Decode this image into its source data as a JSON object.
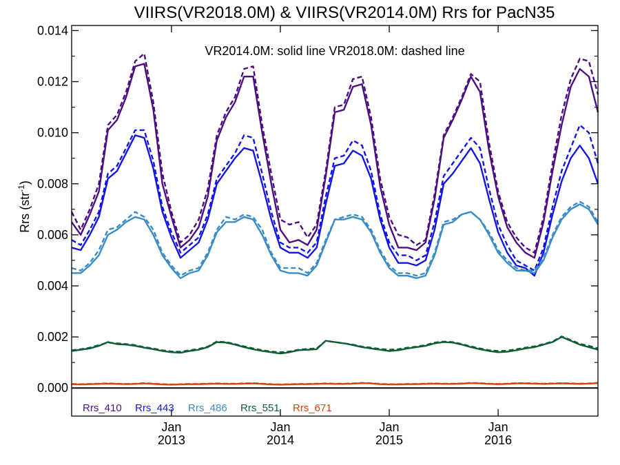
{
  "chart_data": {
    "type": "line",
    "title": "VIIRS(VR2018.0M) & VIIRS(VR2014.0M)  Rrs for PacN35",
    "note": "VR2014.0M: solid line   VR2018.0M: dashed line",
    "ylabel_main": "Rrs (str",
    "ylabel_sup": "-1",
    "ylabel_close": ")",
    "xlim": [
      0,
      58
    ],
    "ylim": [
      -0.0011,
      0.0142
    ],
    "yticks": [
      0.0,
      0.002,
      0.004,
      0.006,
      0.008,
      0.01,
      0.012,
      0.014
    ],
    "ytick_labels": [
      "0.000",
      "0.002",
      "0.004",
      "0.006",
      "0.008",
      "0.010",
      "0.012",
      "0.014"
    ],
    "xticks": [
      {
        "x": 11,
        "month": "Jan",
        "year": "2013"
      },
      {
        "x": 23,
        "month": "Jan",
        "year": "2014"
      },
      {
        "x": 35,
        "month": "Jan",
        "year": "2015"
      },
      {
        "x": 47,
        "month": "Jan",
        "year": "2016"
      }
    ],
    "x": [
      0,
      1,
      2,
      3,
      4,
      5,
      6,
      7,
      8,
      9,
      10,
      11,
      12,
      13,
      14,
      15,
      16,
      17,
      18,
      19,
      20,
      21,
      22,
      23,
      24,
      25,
      26,
      27,
      28,
      29,
      30,
      31,
      32,
      33,
      34,
      35,
      36,
      37,
      38,
      39,
      40,
      41,
      42,
      43,
      44,
      45,
      46,
      47,
      48,
      49,
      50,
      51,
      52,
      53,
      54,
      55,
      56,
      57,
      58
    ],
    "series": [
      {
        "name": "Rrs_410",
        "version": "VR2014.0M",
        "style": "solid",
        "color": "#4B0F82",
        "values": [
          0.0065,
          0.006,
          0.0068,
          0.0077,
          0.0101,
          0.0105,
          0.0114,
          0.0126,
          0.0127,
          0.0109,
          0.008,
          0.0067,
          0.0055,
          0.0058,
          0.0063,
          0.0075,
          0.0097,
          0.0106,
          0.0112,
          0.0122,
          0.0122,
          0.01,
          0.008,
          0.0062,
          0.0057,
          0.0058,
          0.0056,
          0.0062,
          0.0083,
          0.0108,
          0.0109,
          0.0118,
          0.0119,
          0.0103,
          0.0079,
          0.0064,
          0.0055,
          0.0055,
          0.0054,
          0.0057,
          0.0074,
          0.0098,
          0.0105,
          0.0113,
          0.0122,
          0.0116,
          0.0093,
          0.0075,
          0.0063,
          0.0057,
          0.0053,
          0.0051,
          0.0065,
          0.0085,
          0.0103,
          0.0118,
          0.0125,
          0.0122,
          0.0108
        ]
      },
      {
        "name": "Rrs_410",
        "version": "VR2018.0M",
        "style": "dashed",
        "color": "#4B0F82",
        "values": [
          0.0069,
          0.0062,
          0.007,
          0.008,
          0.0103,
          0.0107,
          0.0116,
          0.0128,
          0.0131,
          0.0112,
          0.0084,
          0.0069,
          0.0057,
          0.006,
          0.0066,
          0.0078,
          0.0099,
          0.0108,
          0.0114,
          0.0125,
          0.0126,
          0.0103,
          0.0084,
          0.0066,
          0.0064,
          0.0065,
          0.0059,
          0.0064,
          0.0085,
          0.011,
          0.0111,
          0.0121,
          0.0122,
          0.0106,
          0.0082,
          0.0067,
          0.006,
          0.0059,
          0.0056,
          0.0058,
          0.0076,
          0.0099,
          0.0106,
          0.0114,
          0.0123,
          0.012,
          0.0096,
          0.0077,
          0.0065,
          0.0059,
          0.0055,
          0.0053,
          0.0067,
          0.0088,
          0.0107,
          0.0121,
          0.0129,
          0.0128,
          0.0115
        ]
      },
      {
        "name": "Rrs_443",
        "version": "VR2014.0M",
        "style": "solid",
        "color": "#1414E6",
        "values": [
          0.0055,
          0.0054,
          0.006,
          0.0067,
          0.0082,
          0.0085,
          0.0092,
          0.0099,
          0.0098,
          0.0086,
          0.0069,
          0.0059,
          0.0051,
          0.0054,
          0.0057,
          0.0066,
          0.008,
          0.0085,
          0.009,
          0.0094,
          0.0093,
          0.008,
          0.0066,
          0.0055,
          0.0053,
          0.0053,
          0.0051,
          0.0055,
          0.0072,
          0.0087,
          0.0088,
          0.0093,
          0.0091,
          0.0082,
          0.0066,
          0.0055,
          0.0049,
          0.0049,
          0.0048,
          0.005,
          0.0062,
          0.008,
          0.0084,
          0.0089,
          0.0094,
          0.0088,
          0.0074,
          0.0061,
          0.0053,
          0.0048,
          0.0047,
          0.0044,
          0.0053,
          0.0068,
          0.0081,
          0.009,
          0.0095,
          0.009,
          0.008
        ]
      },
      {
        "name": "Rrs_443",
        "version": "VR2018.0M",
        "style": "dashed",
        "color": "#1414E6",
        "values": [
          0.0058,
          0.0056,
          0.0062,
          0.0069,
          0.0084,
          0.0087,
          0.0094,
          0.0101,
          0.0101,
          0.0089,
          0.0071,
          0.0061,
          0.0053,
          0.0056,
          0.0059,
          0.0068,
          0.0082,
          0.0087,
          0.0092,
          0.0099,
          0.0098,
          0.0084,
          0.0069,
          0.0057,
          0.0055,
          0.0055,
          0.0053,
          0.0057,
          0.0075,
          0.009,
          0.0091,
          0.0097,
          0.0095,
          0.0085,
          0.0068,
          0.0057,
          0.0052,
          0.0052,
          0.005,
          0.0052,
          0.0065,
          0.0083,
          0.0088,
          0.0093,
          0.0098,
          0.0094,
          0.0078,
          0.0064,
          0.0056,
          0.005,
          0.0048,
          0.0046,
          0.0055,
          0.0071,
          0.0085,
          0.0094,
          0.0103,
          0.01,
          0.0088
        ]
      },
      {
        "name": "Rrs_486",
        "version": "VR2014.0M",
        "style": "solid",
        "color": "#3A8CC6",
        "values": [
          0.0045,
          0.0045,
          0.0048,
          0.0052,
          0.006,
          0.0062,
          0.0065,
          0.0067,
          0.0066,
          0.006,
          0.0052,
          0.0047,
          0.0043,
          0.0045,
          0.0046,
          0.0052,
          0.0061,
          0.0065,
          0.0065,
          0.0067,
          0.0066,
          0.006,
          0.0052,
          0.0046,
          0.0045,
          0.0045,
          0.0044,
          0.0048,
          0.0057,
          0.0066,
          0.0066,
          0.0067,
          0.0066,
          0.0061,
          0.0053,
          0.0047,
          0.0044,
          0.0044,
          0.0043,
          0.0044,
          0.0052,
          0.0064,
          0.0065,
          0.0068,
          0.0069,
          0.0066,
          0.006,
          0.0053,
          0.0049,
          0.0046,
          0.0046,
          0.0045,
          0.005,
          0.0059,
          0.0066,
          0.007,
          0.0072,
          0.007,
          0.0064
        ]
      },
      {
        "name": "Rrs_486",
        "version": "VR2018.0M",
        "style": "dashed",
        "color": "#3A8CC6",
        "values": [
          0.0047,
          0.0046,
          0.0049,
          0.0054,
          0.0062,
          0.0063,
          0.0066,
          0.0069,
          0.0067,
          0.0062,
          0.0053,
          0.0048,
          0.0044,
          0.0046,
          0.0047,
          0.0053,
          0.0062,
          0.0067,
          0.0066,
          0.0068,
          0.0067,
          0.0062,
          0.0053,
          0.0047,
          0.0047,
          0.0047,
          0.0045,
          0.0049,
          0.0058,
          0.0066,
          0.0067,
          0.0068,
          0.0067,
          0.0062,
          0.0054,
          0.0048,
          0.0045,
          0.0045,
          0.0044,
          0.0045,
          0.0053,
          0.0065,
          0.0066,
          0.0068,
          0.0069,
          0.0066,
          0.0061,
          0.0054,
          0.005,
          0.0047,
          0.0046,
          0.0046,
          0.0051,
          0.006,
          0.0067,
          0.0071,
          0.0073,
          0.0071,
          0.0065
        ]
      },
      {
        "name": "Rrs_551",
        "version": "VR2014.0M",
        "style": "solid",
        "color": "#0D5E32",
        "values": [
          0.00145,
          0.0015,
          0.00155,
          0.00165,
          0.0018,
          0.00172,
          0.0017,
          0.00165,
          0.00158,
          0.00152,
          0.00145,
          0.0014,
          0.00138,
          0.00145,
          0.0015,
          0.0016,
          0.0018,
          0.00178,
          0.0017,
          0.0016,
          0.00152,
          0.00145,
          0.0014,
          0.00135,
          0.0014,
          0.00148,
          0.0015,
          0.00152,
          0.00185,
          0.0018,
          0.00175,
          0.00168,
          0.0016,
          0.00155,
          0.0015,
          0.00145,
          0.00148,
          0.00155,
          0.0016,
          0.00165,
          0.00175,
          0.0018,
          0.00178,
          0.0017,
          0.0016,
          0.00152,
          0.00145,
          0.0014,
          0.00142,
          0.00148,
          0.00155,
          0.0016,
          0.0017,
          0.0018,
          0.002,
          0.00185,
          0.0017,
          0.0016,
          0.0015
        ]
      },
      {
        "name": "Rrs_551",
        "version": "VR2018.0M",
        "style": "dashed",
        "color": "#0D5E32",
        "values": [
          0.00148,
          0.00152,
          0.00158,
          0.00168,
          0.00178,
          0.00175,
          0.00172,
          0.00168,
          0.0016,
          0.00155,
          0.00148,
          0.00143,
          0.00142,
          0.00148,
          0.00153,
          0.00162,
          0.00182,
          0.0018,
          0.00172,
          0.00163,
          0.00155,
          0.00148,
          0.00143,
          0.0014,
          0.00143,
          0.0015,
          0.00153,
          0.00155,
          0.00185,
          0.0018,
          0.00175,
          0.0017,
          0.00162,
          0.00158,
          0.00153,
          0.0015,
          0.00152,
          0.00158,
          0.00162,
          0.00168,
          0.00178,
          0.00182,
          0.0018,
          0.00172,
          0.00163,
          0.00155,
          0.00148,
          0.00145,
          0.00146,
          0.00152,
          0.00158,
          0.00163,
          0.00172,
          0.00182,
          0.00202,
          0.00188,
          0.00173,
          0.00165,
          0.00155
        ]
      },
      {
        "name": "Rrs_671",
        "version": "VR2014.0M",
        "style": "solid",
        "color": "#D2460F",
        "values": [
          0.00015,
          0.00014,
          0.00015,
          0.00016,
          0.00017,
          0.00016,
          0.00015,
          0.00016,
          0.00018,
          0.00016,
          0.00014,
          0.00013,
          0.00014,
          0.00015,
          0.00015,
          0.00016,
          0.00017,
          0.00016,
          0.00016,
          0.00017,
          0.00018,
          0.00016,
          0.00014,
          0.00013,
          0.00014,
          0.00015,
          0.00015,
          0.00016,
          0.00017,
          0.00016,
          0.00016,
          0.00017,
          0.00019,
          0.00018,
          0.00015,
          0.00014,
          0.00014,
          0.00015,
          0.00015,
          0.00016,
          0.00017,
          0.00016,
          0.00016,
          0.00017,
          0.00019,
          0.00018,
          0.00016,
          0.00015,
          0.00016,
          0.00018,
          0.00018,
          0.00017,
          0.00016,
          0.00017,
          0.00018,
          0.00017,
          0.00016,
          0.00017,
          0.00019
        ]
      },
      {
        "name": "Rrs_671",
        "version": "VR2018.0M",
        "style": "dashed",
        "color": "#D2460F",
        "values": [
          0.00016,
          0.00015,
          0.00016,
          0.00017,
          0.00018,
          0.00017,
          0.00016,
          0.00017,
          0.00019,
          0.00017,
          0.00015,
          0.00014,
          0.00015,
          0.00016,
          0.00016,
          0.00017,
          0.00018,
          0.00017,
          0.00017,
          0.00018,
          0.00019,
          0.00017,
          0.00015,
          0.00014,
          0.00015,
          0.00016,
          0.00016,
          0.00017,
          0.00018,
          0.00017,
          0.00017,
          0.00018,
          0.0002,
          0.00019,
          0.00016,
          0.00015,
          0.00015,
          0.00016,
          0.00016,
          0.00017,
          0.00018,
          0.00017,
          0.00017,
          0.00018,
          0.0002,
          0.00019,
          0.00017,
          0.00016,
          0.00017,
          0.00019,
          0.00019,
          0.00018,
          0.00017,
          0.00018,
          0.00019,
          0.00018,
          0.00017,
          0.00018,
          0.0002
        ]
      }
    ],
    "legend": [
      {
        "label": "Rrs_410",
        "color": "#4B0F82"
      },
      {
        "label": "Rrs_443",
        "color": "#1414E6"
      },
      {
        "label": "Rrs_486",
        "color": "#3A8CC6"
      },
      {
        "label": "Rrs_551",
        "color": "#0D5E32"
      },
      {
        "label": "Rrs_671",
        "color": "#D2460F"
      }
    ],
    "legend_position": "bottom-left",
    "zero_line": true,
    "grid": false
  }
}
